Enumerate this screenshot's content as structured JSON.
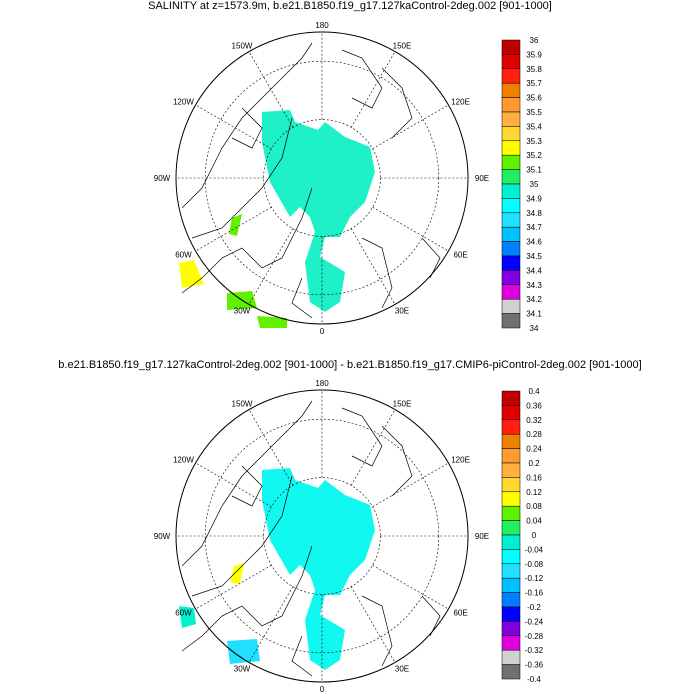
{
  "panels": [
    {
      "title": "SALINITY at z=1573.9m, b.e21.B1850.f19_g17.127kaControl-2deg.002 [901-1000]",
      "colorbar_labels": [
        "36",
        "35.9",
        "35.8",
        "35.7",
        "35.6",
        "35.5",
        "35.4",
        "35.3",
        "35.2",
        "35.1",
        "35",
        "34.9",
        "34.8",
        "34.7",
        "34.6",
        "34.5",
        "34.4",
        "34.3",
        "34.2",
        "34.1",
        "34"
      ],
      "field_color": "#1ef0c8"
    },
    {
      "title": "b.e21.B1850.f19_g17.127kaControl-2deg.002 [901-1000] - b.e21.B1850.f19_g17.CMIP6-piControl-2deg.002 [901-1000]",
      "colorbar_labels": [
        "0.4",
        "0.36",
        "0.32",
        "0.28",
        "0.24",
        "0.2",
        "0.16",
        "0.12",
        "0.08",
        "0.04",
        "0",
        "-0.04",
        "-0.08",
        "-0.12",
        "-0.16",
        "-0.2",
        "-0.24",
        "-0.28",
        "-0.32",
        "-0.36",
        "-0.4"
      ],
      "field_color": "#10f8f0"
    }
  ],
  "longitude_labels": [
    "180",
    "150E",
    "120E",
    "90E",
    "60E",
    "30E",
    "0",
    "30W",
    "60W",
    "90W",
    "120W",
    "150W"
  ],
  "colorbar_colors": [
    "#c00000",
    "#e00000",
    "#ff2010",
    "#f08000",
    "#ff9a30",
    "#ffb040",
    "#ffd830",
    "#ffff00",
    "#60f000",
    "#20f060",
    "#00f0d0",
    "#00ffff",
    "#20e0ff",
    "#00c0ff",
    "#0080ff",
    "#0000ff",
    "#8000e0",
    "#e000e0",
    "#d0d0d0",
    "#707070"
  ]
}
